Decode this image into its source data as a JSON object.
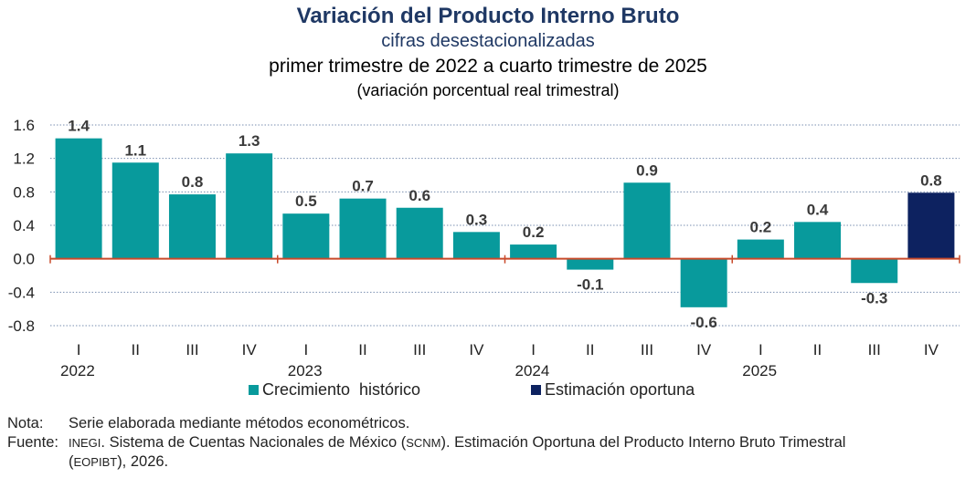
{
  "colors": {
    "historic": "#089a9c",
    "estimate": "#0d2260",
    "zero_line": "#c94a2a",
    "grid": "#7a8fb0",
    "title": "#1f3864"
  },
  "chart_data": {
    "type": "bar",
    "title": "Variación del Producto Interno Bruto",
    "subtitle1": "cifras desestacionalizadas",
    "subtitle2": "primer trimestre de 2022 a cuarto trimestre de 2025",
    "subtitle3": "(variación porcentual real trimestral)",
    "ylim": [
      -0.8,
      1.6
    ],
    "yticks": [
      "1.6",
      "1.2",
      "0.8",
      "0.4",
      "0.0",
      "-0.4",
      "-0.8"
    ],
    "ytick_values": [
      1.6,
      1.2,
      0.8,
      0.4,
      0.0,
      -0.4,
      -0.8
    ],
    "grid": true,
    "years": [
      "2022",
      "2023",
      "2024",
      "2025"
    ],
    "categories": [
      "I",
      "II",
      "III",
      "IV",
      "I",
      "II",
      "III",
      "IV",
      "I",
      "II",
      "III",
      "IV",
      "I",
      "II",
      "III",
      "IV"
    ],
    "values": [
      1.44,
      1.15,
      0.77,
      1.26,
      0.54,
      0.72,
      0.61,
      0.32,
      0.17,
      -0.13,
      0.91,
      -0.58,
      0.23,
      0.44,
      -0.29,
      0.79
    ],
    "labels": [
      "1.4",
      "1.1",
      "0.8",
      "1.3",
      "0.5",
      "0.7",
      "0.6",
      "0.3",
      "0.2",
      "-0.1",
      "0.9",
      "-0.6",
      "0.2",
      "0.4",
      "-0.3",
      "0.8"
    ],
    "series_of_point": [
      "historic",
      "historic",
      "historic",
      "historic",
      "historic",
      "historic",
      "historic",
      "historic",
      "historic",
      "historic",
      "historic",
      "historic",
      "historic",
      "historic",
      "historic",
      "estimate"
    ],
    "legend": [
      {
        "key": "historic",
        "label": "Crecimiento  histórico"
      },
      {
        "key": "estimate",
        "label": "Estimación oportuna"
      }
    ],
    "legend_position": "bottom-center"
  },
  "notes": {
    "nota_label": "Nota:",
    "nota_text": "Serie elaborada mediante métodos econométricos.",
    "fuente_label": "Fuente:",
    "fuente_inegi": "INEGI",
    "fuente_text1": ". Sistema de Cuentas Nacionales de México (",
    "fuente_scnm": "SCNM",
    "fuente_text2": "). Estimación Oportuna del Producto Interno Bruto Trimestral",
    "fuente_open": "(",
    "fuente_eopibt": "EOPIBT",
    "fuente_text3": "), 2026."
  }
}
